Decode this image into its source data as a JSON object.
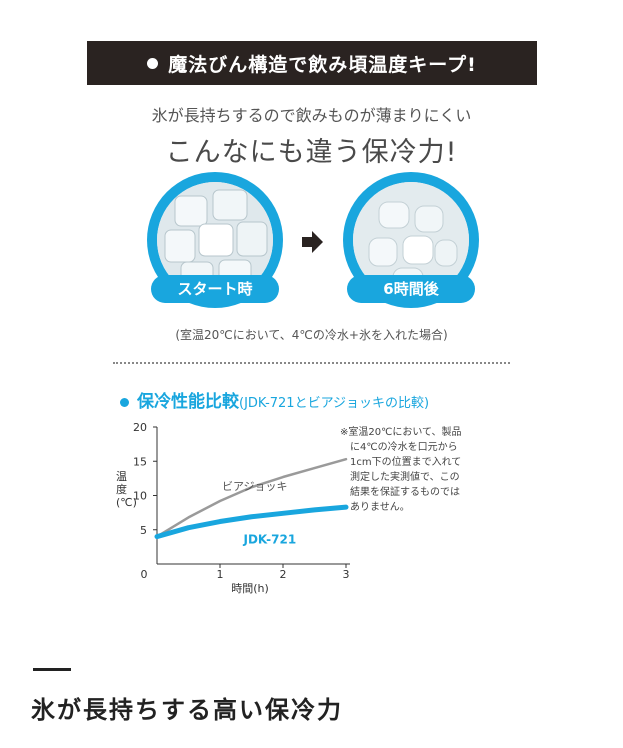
{
  "banner": {
    "text": "魔法びん構造で飲み頃温度キープ!"
  },
  "intro": {
    "subtitle": "氷が長持ちするので飲みものが薄まりにくい",
    "headline": "こんなにも違う保冷力!"
  },
  "comparison": {
    "start_label": "スタート時",
    "after_label": "6時間後",
    "note": "(室温20℃において、4℃の冷水+氷を入れた場合)"
  },
  "section": {
    "title": "保冷性能比較",
    "subtitle": "(JDK-721とビアジョッキの比較)"
  },
  "chart_data": {
    "type": "line",
    "x": [
      0,
      0.5,
      1,
      1.5,
      2,
      2.5,
      3
    ],
    "series": [
      {
        "name": "ビアジョッキ",
        "values": [
          4,
          6.8,
          9.2,
          11.2,
          12.7,
          14,
          15.3
        ],
        "color": "#9a9a9a"
      },
      {
        "name": "JDK-721",
        "values": [
          4,
          5.3,
          6.2,
          6.9,
          7.4,
          7.9,
          8.3
        ],
        "color": "#19a6de"
      }
    ],
    "xlabel": "時間(h)",
    "ylabel": "温度(℃)",
    "xlim": [
      0,
      3
    ],
    "ylim": [
      0,
      20
    ],
    "xticks": [
      "0",
      "1",
      "2",
      "3"
    ],
    "yticks": [
      "5",
      "10",
      "15",
      "20"
    ],
    "grid": false
  },
  "remark": {
    "lines": [
      "※室温20℃において、製品",
      "に4℃の冷水を口元から",
      "1cm下の位置まで入れて",
      "測定した実測値で、この",
      "結果を保証するものでは",
      "ありません。"
    ]
  },
  "footer": {
    "title": "氷が長持ちする高い保冷力"
  },
  "colors": {
    "accent": "#19a6de",
    "banner_bg": "#2a2321",
    "comparison_line": "#9a9a9a"
  }
}
